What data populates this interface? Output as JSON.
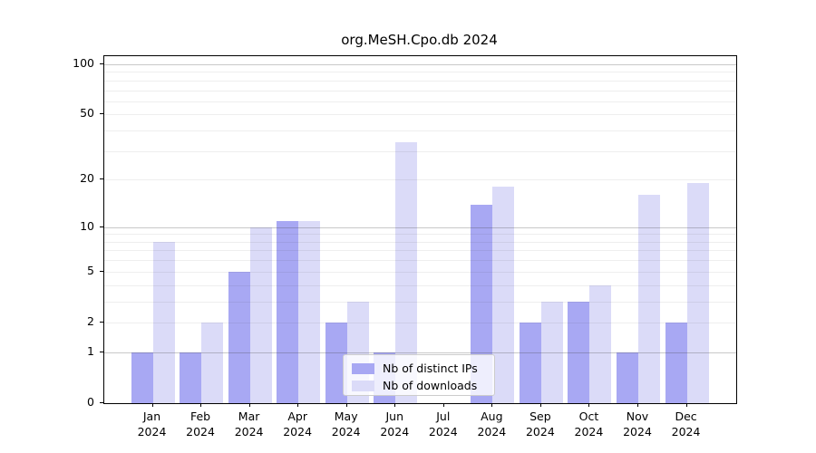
{
  "chart_data": {
    "type": "bar",
    "title": "org.MeSH.Cpo.db 2024",
    "year_label": "2024",
    "months": [
      "Jan",
      "Feb",
      "Mar",
      "Apr",
      "May",
      "Jun",
      "Jul",
      "Aug",
      "Sep",
      "Oct",
      "Nov",
      "Dec"
    ],
    "series": [
      {
        "name": "Nb of distinct IPs",
        "color": "#a8a8f3",
        "values": [
          1,
          1,
          5,
          11,
          2,
          1,
          0,
          14,
          2,
          3,
          1,
          2
        ]
      },
      {
        "name": "Nb of downloads",
        "color": "#dbdbf8",
        "values": [
          8,
          2,
          10,
          11,
          3,
          34,
          0,
          18,
          3,
          4,
          16,
          19
        ]
      }
    ],
    "xlabel": "",
    "ylabel": "",
    "yscale": "log1p",
    "ylim": [
      0,
      112
    ],
    "ytick_values": [
      0,
      1,
      2,
      5,
      10,
      20,
      50,
      100
    ],
    "ytick_labels": [
      "0",
      "1",
      "2",
      "5",
      "10",
      "20",
      "50",
      "100"
    ],
    "major_grid_values": [
      1,
      10,
      100
    ],
    "minor_grid_values": [
      2,
      3,
      4,
      5,
      6,
      7,
      8,
      9,
      20,
      30,
      40,
      50,
      60,
      70,
      80,
      90
    ],
    "grid": "horizontal, drawn above bars",
    "legend_position": "lower center"
  }
}
